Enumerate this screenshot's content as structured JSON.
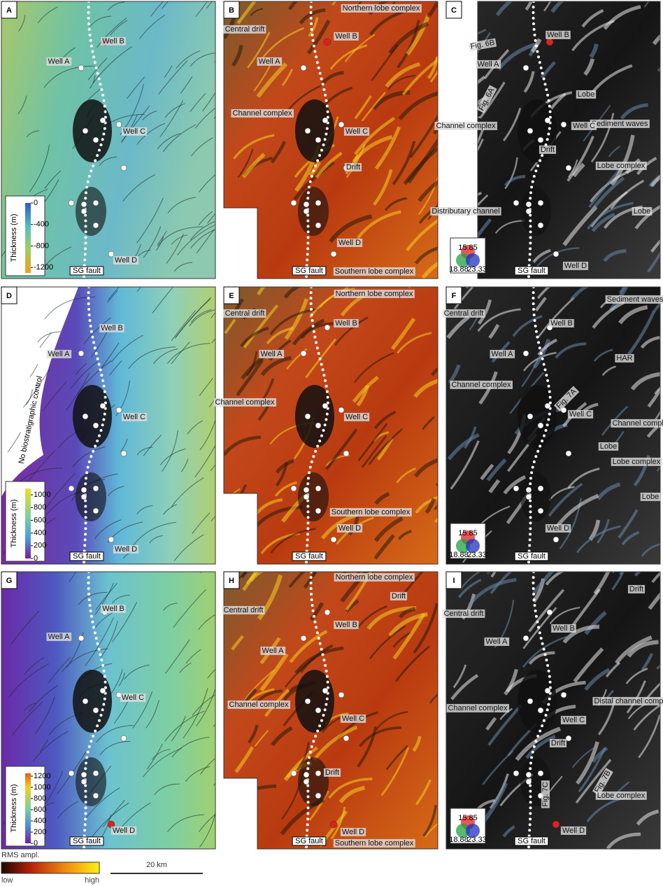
{
  "panels": [
    {
      "letter": "A",
      "fault": "SG fault",
      "labels": [
        "Well B",
        "Well A",
        "Well C",
        "Well D"
      ],
      "colorbar": {
        "title": "Thickness (m)",
        "ticks": [
          0,
          -400,
          -800,
          -1200
        ],
        "range": [
          -1300,
          0
        ]
      }
    },
    {
      "letter": "B",
      "fault": "SG fault",
      "labels": [
        "Northern lobe complex",
        "Central drift",
        "Well B",
        "Well A",
        "Channel complex",
        "Well C",
        "Drift",
        "Well D",
        "Southern lobe complex"
      ]
    },
    {
      "letter": "C",
      "fault": "SG fault",
      "labels": [
        "Well B",
        "Fig. 6B",
        "Well A",
        "Fig. 6A",
        "Lobe",
        "Sediment waves",
        "Channel complex",
        "Well C",
        "Drift",
        "Lobe complex",
        "Lobe",
        "Distributary channel",
        "Well D"
      ],
      "rgb_legend": [
        "15.85",
        "18.88",
        "23.33"
      ]
    },
    {
      "letter": "D",
      "fault": "SG fault",
      "labels": [
        "Well B",
        "Well A",
        "Well C",
        "Well D",
        "No biostratigraphic control"
      ],
      "colorbar": {
        "title": "Thickness (m)",
        "ticks": [
          1000,
          800,
          600,
          400,
          200,
          0
        ],
        "range": [
          0,
          1100
        ]
      }
    },
    {
      "letter": "E",
      "fault": "SG fault",
      "labels": [
        "Northern lobe complex",
        "Central drift",
        "Well B",
        "Well A",
        "Channel complex",
        "Well C",
        "Southern lobe complex",
        "Well D"
      ]
    },
    {
      "letter": "F",
      "fault": "SG fault",
      "labels": [
        "Sediment waves",
        "Central drift",
        "Well B",
        "Well A",
        "HAR",
        "Fig. 7A",
        "Channel complex",
        "Well C",
        "Channel complex",
        "Lobe",
        "Lobe complex",
        "Lobe",
        "Well D"
      ],
      "rgb_legend": [
        "15.85",
        "18.88",
        "23.33"
      ]
    },
    {
      "letter": "G",
      "fault": "SG fault",
      "labels": [
        "Well B",
        "Well A",
        "Well C",
        "Well D"
      ],
      "colorbar": {
        "title": "Thickness (m)",
        "ticks": [
          1200,
          1000,
          800,
          600,
          400,
          200,
          0
        ],
        "range": [
          0,
          1250
        ]
      }
    },
    {
      "letter": "H",
      "fault": "SG fault",
      "labels": [
        "Northern lobe complex",
        "Drift",
        "Central drift",
        "Well B",
        "Well A",
        "Channel complex",
        "Well C",
        "Drift",
        "Well D",
        "Southern lobe complex"
      ]
    },
    {
      "letter": "I",
      "fault": "SG fault",
      "labels": [
        "Drift",
        "Central drift",
        "Well B",
        "Well A",
        "Distal channel complex",
        "Channel complex",
        "Well C",
        "Drift",
        "Fig. 7C",
        "Fig. 7B",
        "Lobe complex",
        "Well D"
      ],
      "rgb_legend": [
        "15.85",
        "18.88",
        "23.33"
      ]
    }
  ],
  "legend": {
    "title": "RMS ampl.",
    "low": "low",
    "high": "high",
    "scale": "20 km"
  }
}
